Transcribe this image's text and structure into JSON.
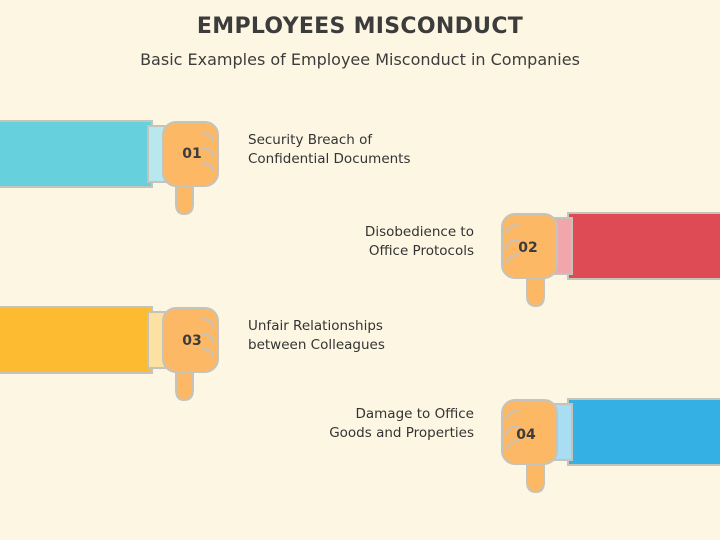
{
  "title": "EMPLOYEES MISCONDUCT",
  "subtitle": "Basic Examples of Employee Misconduct in Companies",
  "colors": {
    "background": "#fdf6e3",
    "hand": "#fcb865",
    "hand_outline": "#c4c4bc"
  },
  "items": [
    {
      "number": "01",
      "lines": [
        "Security Breach of",
        "Confidential Documents"
      ],
      "sleeve_color": "#66d1dc",
      "cuff_color": "#b8e8ee",
      "icon": "thumbs-down-icon"
    },
    {
      "number": "02",
      "lines": [
        "Disobedience to",
        "Office Protocols"
      ],
      "sleeve_color": "#df4b55",
      "cuff_color": "#f2a6ab",
      "icon": "thumbs-down-icon"
    },
    {
      "number": "03",
      "lines": [
        "Unfair Relationships",
        "between Colleagues"
      ],
      "sleeve_color": "#fdbb32",
      "cuff_color": "#fde1a2",
      "icon": "thumbs-down-icon"
    },
    {
      "number": "04",
      "lines": [
        "Damage to Office",
        "Goods and Properties"
      ],
      "sleeve_color": "#34b0e4",
      "cuff_color": "#a9def2",
      "icon": "thumbs-down-icon"
    }
  ]
}
